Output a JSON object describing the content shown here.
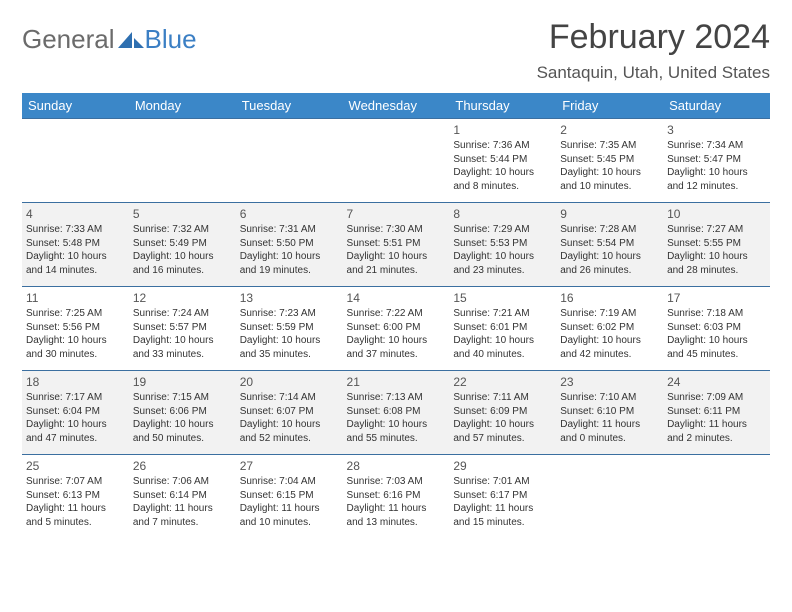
{
  "branding": {
    "word1": "General",
    "word2": "Blue",
    "logo_fill": "#2e6fb0"
  },
  "title": "February 2024",
  "location": "Santaquin, Utah, United States",
  "colors": {
    "header_bg": "#3b87c8",
    "header_text": "#ffffff",
    "row_border": "#3b6fa0",
    "alt_row_bg": "#f2f2f2",
    "text": "#333333",
    "title_color": "#444444"
  },
  "typography": {
    "title_fontsize": 34,
    "location_fontsize": 17,
    "dayhead_fontsize": 13,
    "cell_fontsize": 10
  },
  "day_headers": [
    "Sunday",
    "Monday",
    "Tuesday",
    "Wednesday",
    "Thursday",
    "Friday",
    "Saturday"
  ],
  "weeks": [
    [
      null,
      null,
      null,
      null,
      {
        "n": "1",
        "sunrise": "7:36 AM",
        "sunset": "5:44 PM",
        "daylight": "10 hours and 8 minutes."
      },
      {
        "n": "2",
        "sunrise": "7:35 AM",
        "sunset": "5:45 PM",
        "daylight": "10 hours and 10 minutes."
      },
      {
        "n": "3",
        "sunrise": "7:34 AM",
        "sunset": "5:47 PM",
        "daylight": "10 hours and 12 minutes."
      }
    ],
    [
      {
        "n": "4",
        "sunrise": "7:33 AM",
        "sunset": "5:48 PM",
        "daylight": "10 hours and 14 minutes."
      },
      {
        "n": "5",
        "sunrise": "7:32 AM",
        "sunset": "5:49 PM",
        "daylight": "10 hours and 16 minutes."
      },
      {
        "n": "6",
        "sunrise": "7:31 AM",
        "sunset": "5:50 PM",
        "daylight": "10 hours and 19 minutes."
      },
      {
        "n": "7",
        "sunrise": "7:30 AM",
        "sunset": "5:51 PM",
        "daylight": "10 hours and 21 minutes."
      },
      {
        "n": "8",
        "sunrise": "7:29 AM",
        "sunset": "5:53 PM",
        "daylight": "10 hours and 23 minutes."
      },
      {
        "n": "9",
        "sunrise": "7:28 AM",
        "sunset": "5:54 PM",
        "daylight": "10 hours and 26 minutes."
      },
      {
        "n": "10",
        "sunrise": "7:27 AM",
        "sunset": "5:55 PM",
        "daylight": "10 hours and 28 minutes."
      }
    ],
    [
      {
        "n": "11",
        "sunrise": "7:25 AM",
        "sunset": "5:56 PM",
        "daylight": "10 hours and 30 minutes."
      },
      {
        "n": "12",
        "sunrise": "7:24 AM",
        "sunset": "5:57 PM",
        "daylight": "10 hours and 33 minutes."
      },
      {
        "n": "13",
        "sunrise": "7:23 AM",
        "sunset": "5:59 PM",
        "daylight": "10 hours and 35 minutes."
      },
      {
        "n": "14",
        "sunrise": "7:22 AM",
        "sunset": "6:00 PM",
        "daylight": "10 hours and 37 minutes."
      },
      {
        "n": "15",
        "sunrise": "7:21 AM",
        "sunset": "6:01 PM",
        "daylight": "10 hours and 40 minutes."
      },
      {
        "n": "16",
        "sunrise": "7:19 AM",
        "sunset": "6:02 PM",
        "daylight": "10 hours and 42 minutes."
      },
      {
        "n": "17",
        "sunrise": "7:18 AM",
        "sunset": "6:03 PM",
        "daylight": "10 hours and 45 minutes."
      }
    ],
    [
      {
        "n": "18",
        "sunrise": "7:17 AM",
        "sunset": "6:04 PM",
        "daylight": "10 hours and 47 minutes."
      },
      {
        "n": "19",
        "sunrise": "7:15 AM",
        "sunset": "6:06 PM",
        "daylight": "10 hours and 50 minutes."
      },
      {
        "n": "20",
        "sunrise": "7:14 AM",
        "sunset": "6:07 PM",
        "daylight": "10 hours and 52 minutes."
      },
      {
        "n": "21",
        "sunrise": "7:13 AM",
        "sunset": "6:08 PM",
        "daylight": "10 hours and 55 minutes."
      },
      {
        "n": "22",
        "sunrise": "7:11 AM",
        "sunset": "6:09 PM",
        "daylight": "10 hours and 57 minutes."
      },
      {
        "n": "23",
        "sunrise": "7:10 AM",
        "sunset": "6:10 PM",
        "daylight": "11 hours and 0 minutes."
      },
      {
        "n": "24",
        "sunrise": "7:09 AM",
        "sunset": "6:11 PM",
        "daylight": "11 hours and 2 minutes."
      }
    ],
    [
      {
        "n": "25",
        "sunrise": "7:07 AM",
        "sunset": "6:13 PM",
        "daylight": "11 hours and 5 minutes."
      },
      {
        "n": "26",
        "sunrise": "7:06 AM",
        "sunset": "6:14 PM",
        "daylight": "11 hours and 7 minutes."
      },
      {
        "n": "27",
        "sunrise": "7:04 AM",
        "sunset": "6:15 PM",
        "daylight": "11 hours and 10 minutes."
      },
      {
        "n": "28",
        "sunrise": "7:03 AM",
        "sunset": "6:16 PM",
        "daylight": "11 hours and 13 minutes."
      },
      {
        "n": "29",
        "sunrise": "7:01 AM",
        "sunset": "6:17 PM",
        "daylight": "11 hours and 15 minutes."
      },
      null,
      null
    ]
  ],
  "labels": {
    "sunrise_prefix": "Sunrise: ",
    "sunset_prefix": "Sunset: ",
    "daylight_prefix": "Daylight: "
  }
}
